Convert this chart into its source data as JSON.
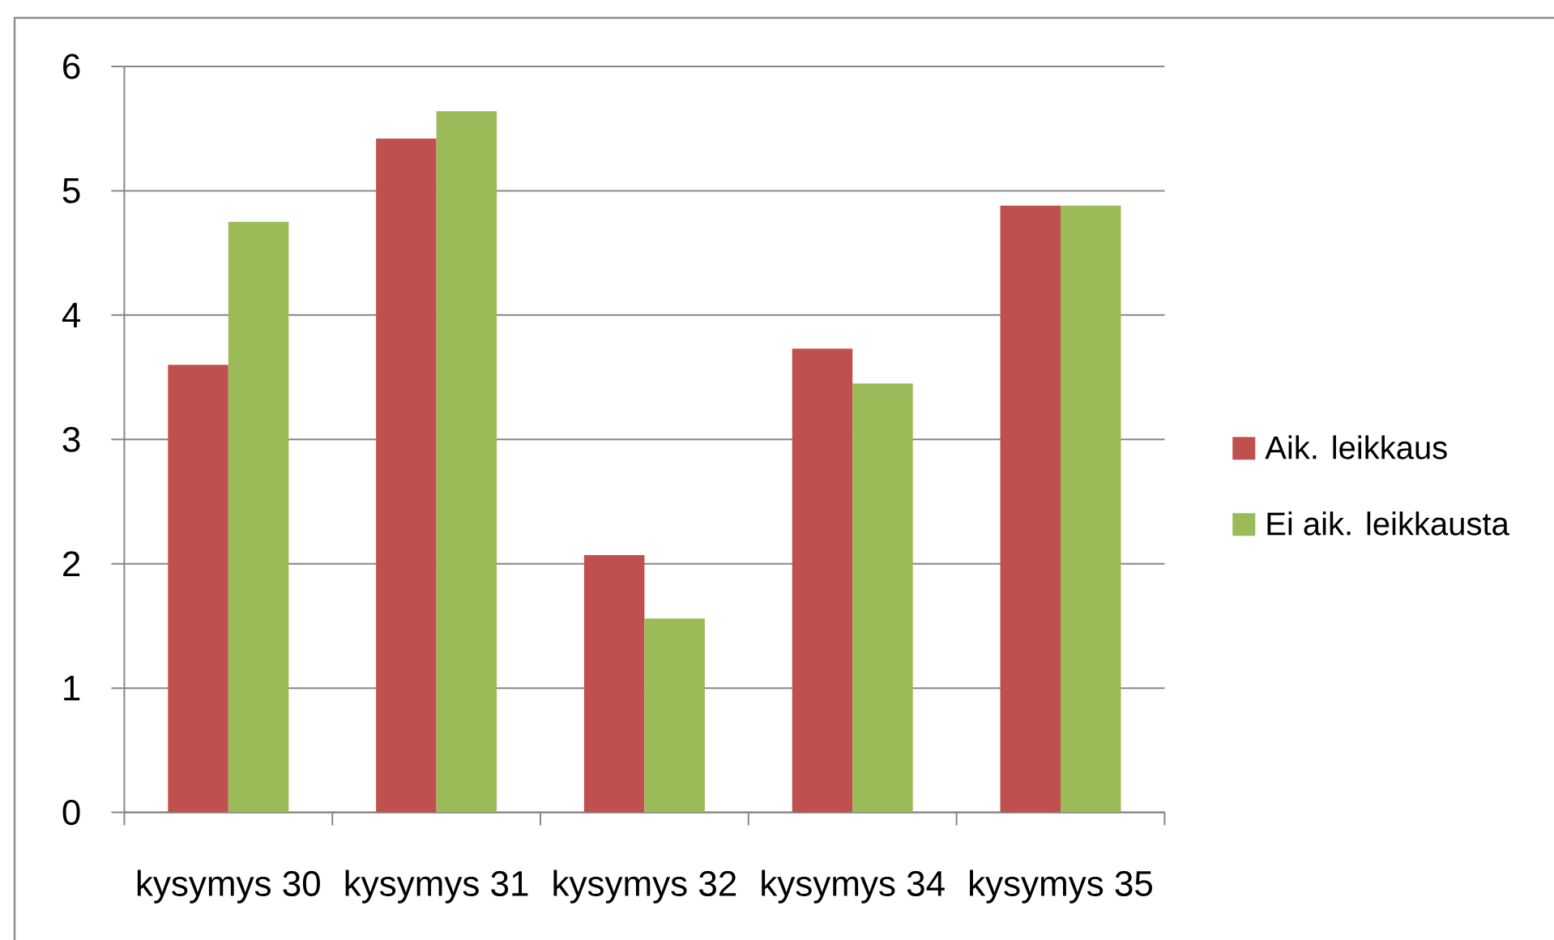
{
  "chart_data": {
    "type": "bar",
    "categories": [
      "kysymys 30",
      "kysymys 31",
      "kysymys 32",
      "kysymys 34",
      "kysymys 35"
    ],
    "series": [
      {
        "name": "Aik. leikkaus",
        "color": "#c0504d",
        "values": [
          3.6,
          5.42,
          2.07,
          3.73,
          4.88
        ]
      },
      {
        "name": "Ei aik. leikkausta",
        "color": "#9bbb59",
        "values": [
          4.75,
          5.64,
          1.56,
          3.45,
          4.88
        ]
      }
    ],
    "ylim": [
      0,
      6
    ],
    "yticks": [
      0,
      1,
      2,
      3,
      4,
      5,
      6
    ],
    "grid": "y",
    "legend": "right"
  }
}
